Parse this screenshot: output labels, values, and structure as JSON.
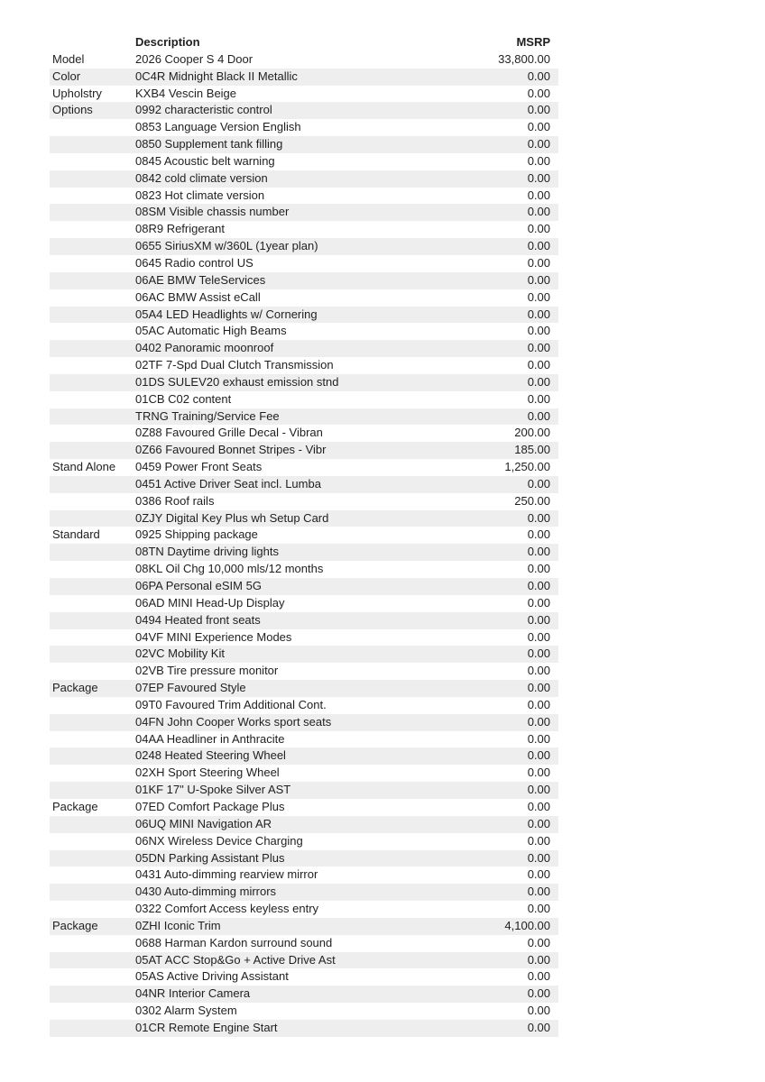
{
  "table": {
    "headers": {
      "category": "",
      "description": "Description",
      "msrp": "MSRP"
    },
    "stripe_color": "#eeeeee",
    "text_color": "#1f1f1f",
    "rows": [
      {
        "category": "Model",
        "description": "2026 Cooper S 4 Door",
        "msrp": "33,800.00"
      },
      {
        "category": "Color",
        "description": "0C4R Midnight Black II Metallic",
        "msrp": "0.00"
      },
      {
        "category": "Upholstry",
        "description": "KXB4 Vescin Beige",
        "msrp": "0.00"
      },
      {
        "category": "Options",
        "description": "0992 characteristic control",
        "msrp": "0.00"
      },
      {
        "category": "",
        "description": "0853 Language Version English",
        "msrp": "0.00"
      },
      {
        "category": "",
        "description": "0850 Supplement tank filling",
        "msrp": "0.00"
      },
      {
        "category": "",
        "description": "0845 Acoustic belt warning",
        "msrp": "0.00"
      },
      {
        "category": "",
        "description": "0842 cold climate version",
        "msrp": "0.00"
      },
      {
        "category": "",
        "description": "0823 Hot climate version",
        "msrp": "0.00"
      },
      {
        "category": "",
        "description": "08SM Visible chassis number",
        "msrp": "0.00"
      },
      {
        "category": "",
        "description": "08R9 Refrigerant",
        "msrp": "0.00"
      },
      {
        "category": "",
        "description": "0655 SiriusXM w/360L (1year plan)",
        "msrp": "0.00"
      },
      {
        "category": "",
        "description": "0645 Radio control US",
        "msrp": "0.00"
      },
      {
        "category": "",
        "description": "06AE BMW TeleServices",
        "msrp": "0.00"
      },
      {
        "category": "",
        "description": "06AC BMW Assist eCall",
        "msrp": "0.00"
      },
      {
        "category": "",
        "description": "05A4 LED Headlights w/ Cornering",
        "msrp": "0.00"
      },
      {
        "category": "",
        "description": "05AC Automatic High Beams",
        "msrp": "0.00"
      },
      {
        "category": "",
        "description": "0402 Panoramic moonroof",
        "msrp": "0.00"
      },
      {
        "category": "",
        "description": "02TF 7-Spd Dual Clutch Transmission",
        "msrp": "0.00"
      },
      {
        "category": "",
        "description": "01DS SULEV20 exhaust emission stnd",
        "msrp": "0.00"
      },
      {
        "category": "",
        "description": "01CB C02 content",
        "msrp": "0.00"
      },
      {
        "category": "",
        "description": "TRNG Training/Service Fee",
        "msrp": "0.00"
      },
      {
        "category": "",
        "description": "0Z88 Favoured Grille Decal - Vibran",
        "msrp": "200.00"
      },
      {
        "category": "",
        "description": "0Z66 Favoured Bonnet Stripes - Vibr",
        "msrp": "185.00"
      },
      {
        "category": "Stand Alone",
        "description": "0459 Power Front Seats",
        "msrp": "1,250.00"
      },
      {
        "category": "",
        "description": "0451 Active Driver Seat incl. Lumba",
        "msrp": "0.00"
      },
      {
        "category": "",
        "description": "0386 Roof rails",
        "msrp": "250.00"
      },
      {
        "category": "",
        "description": "0ZJY Digital Key Plus wh Setup Card",
        "msrp": "0.00"
      },
      {
        "category": "Standard",
        "description": "0925 Shipping package",
        "msrp": "0.00"
      },
      {
        "category": "",
        "description": "08TN Daytime driving lights",
        "msrp": "0.00"
      },
      {
        "category": "",
        "description": "08KL Oil Chg 10,000 mls/12 months",
        "msrp": "0.00"
      },
      {
        "category": "",
        "description": "06PA Personal eSIM 5G",
        "msrp": "0.00"
      },
      {
        "category": "",
        "description": "06AD MINI Head-Up Display",
        "msrp": "0.00"
      },
      {
        "category": "",
        "description": "0494 Heated front seats",
        "msrp": "0.00"
      },
      {
        "category": "",
        "description": "04VF MINI Experience Modes",
        "msrp": "0.00"
      },
      {
        "category": "",
        "description": "02VC Mobility Kit",
        "msrp": "0.00"
      },
      {
        "category": "",
        "description": "02VB Tire pressure monitor",
        "msrp": "0.00"
      },
      {
        "category": "Package",
        "description": "07EP Favoured Style",
        "msrp": "0.00"
      },
      {
        "category": "",
        "description": "09T0 Favoured Trim Additional Cont.",
        "msrp": "0.00"
      },
      {
        "category": "",
        "description": "04FN John Cooper Works sport seats",
        "msrp": "0.00"
      },
      {
        "category": "",
        "description": "04AA Headliner in Anthracite",
        "msrp": "0.00"
      },
      {
        "category": "",
        "description": "0248 Heated Steering Wheel",
        "msrp": "0.00"
      },
      {
        "category": "",
        "description": "02XH Sport Steering Wheel",
        "msrp": "0.00"
      },
      {
        "category": "",
        "description": "01KF 17\" U-Spoke Silver AST",
        "msrp": "0.00"
      },
      {
        "category": "Package",
        "description": "07ED Comfort Package Plus",
        "msrp": "0.00"
      },
      {
        "category": "",
        "description": "06UQ MINI Navigation AR",
        "msrp": "0.00"
      },
      {
        "category": "",
        "description": "06NX Wireless Device Charging",
        "msrp": "0.00"
      },
      {
        "category": "",
        "description": "05DN Parking Assistant Plus",
        "msrp": "0.00"
      },
      {
        "category": "",
        "description": "0431 Auto-dimming rearview mirror",
        "msrp": "0.00"
      },
      {
        "category": "",
        "description": "0430 Auto-dimming mirrors",
        "msrp": "0.00"
      },
      {
        "category": "",
        "description": "0322 Comfort Access keyless entry",
        "msrp": "0.00"
      },
      {
        "category": "Package",
        "description": "0ZHI Iconic Trim",
        "msrp": "4,100.00"
      },
      {
        "category": "",
        "description": "0688 Harman Kardon surround sound",
        "msrp": "0.00"
      },
      {
        "category": "",
        "description": "05AT ACC Stop&Go + Active Drive Ast",
        "msrp": "0.00"
      },
      {
        "category": "",
        "description": "05AS Active Driving Assistant",
        "msrp": "0.00"
      },
      {
        "category": "",
        "description": "04NR Interior Camera",
        "msrp": "0.00"
      },
      {
        "category": "",
        "description": "0302 Alarm System",
        "msrp": "0.00"
      },
      {
        "category": "",
        "description": "01CR Remote Engine Start",
        "msrp": "0.00"
      }
    ]
  }
}
